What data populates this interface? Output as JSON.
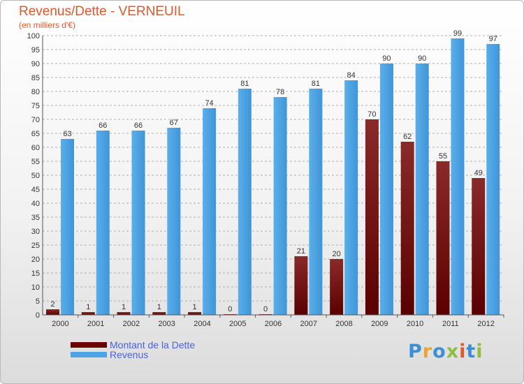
{
  "title": "Revenus/Dette - VERNEUIL",
  "subtitle": "(en milliers d'€)",
  "logo": {
    "letters": [
      {
        "char": "P",
        "color": "#3a8fd6"
      },
      {
        "char": "r",
        "color": "#e8a534"
      },
      {
        "char": "o",
        "color": "#3a8fd6"
      },
      {
        "char": "x",
        "color": "#8cbf3f"
      },
      {
        "char": "i",
        "color": "#e0572b"
      },
      {
        "char": "t",
        "color": "#3a8fd6"
      },
      {
        "char": "i",
        "color": "#8cbf3f"
      }
    ]
  },
  "legend": [
    {
      "label": "Montant de la Dette",
      "color": "#6b0000"
    },
    {
      "label": "Revenus",
      "color": "#4da3e6"
    }
  ],
  "chart_data": {
    "type": "bar",
    "categories": [
      "2000",
      "2001",
      "2002",
      "2003",
      "2004",
      "2005",
      "2006",
      "2007",
      "2008",
      "2009",
      "2010",
      "2011",
      "2012"
    ],
    "series": [
      {
        "name": "Montant de la Dette",
        "color": "#6b0000",
        "values": [
          2,
          1,
          1,
          1,
          1,
          0,
          0,
          21,
          20,
          70,
          62,
          55,
          49
        ]
      },
      {
        "name": "Revenus",
        "color": "#4da3e6",
        "values": [
          63,
          66,
          66,
          67,
          74,
          81,
          78,
          81,
          84,
          90,
          90,
          99,
          97
        ]
      }
    ],
    "ylim": [
      0,
      100
    ],
    "yticks": [
      0,
      5,
      10,
      15,
      20,
      25,
      30,
      35,
      40,
      45,
      50,
      55,
      60,
      65,
      70,
      75,
      80,
      85,
      90,
      95,
      100
    ],
    "grid": "horizontal dashed",
    "legend_position": "bottom-left"
  }
}
